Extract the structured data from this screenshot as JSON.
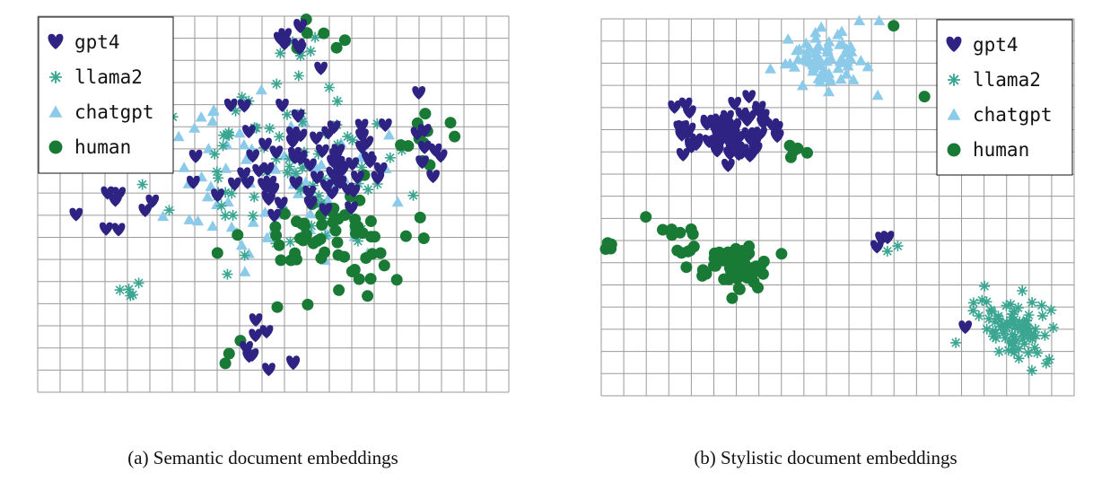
{
  "colors": {
    "gpt4": "#2e2383",
    "llama2": "#3aa691",
    "chatgpt": "#8ccaea",
    "human": "#197a35"
  },
  "chart_data": [
    {
      "type": "scatter",
      "title": "(a) Semantic document embeddings",
      "legend": "top-left",
      "grid": true,
      "xlim": [
        0,
        10
      ],
      "ylim": [
        0,
        10
      ],
      "series": [
        {
          "name": "gpt4",
          "marker": "heart",
          "seed": 11,
          "clusters": [
            {
              "cx": 5.8,
              "cy": 6.2,
              "sx": 1.8,
              "sy": 1.6,
              "n": 70
            },
            {
              "cx": 5.4,
              "cy": 9.3,
              "sx": 0.5,
              "sy": 0.4,
              "n": 7
            },
            {
              "cx": 4.7,
              "cy": 1.2,
              "sx": 0.6,
              "sy": 0.8,
              "n": 9
            },
            {
              "cx": 1.8,
              "cy": 5.0,
              "sx": 0.8,
              "sy": 0.8,
              "n": 8
            },
            {
              "cx": 8.4,
              "cy": 6.3,
              "sx": 0.6,
              "sy": 0.8,
              "n": 6
            }
          ]
        },
        {
          "name": "llama2",
          "marker": "star",
          "seed": 23,
          "clusters": [
            {
              "cx": 5.2,
              "cy": 5.8,
              "sx": 2.0,
              "sy": 1.9,
              "n": 85
            },
            {
              "cx": 5.6,
              "cy": 9.2,
              "sx": 0.4,
              "sy": 0.3,
              "n": 5
            },
            {
              "cx": 2.2,
              "cy": 2.8,
              "sx": 0.5,
              "sy": 0.4,
              "n": 5
            }
          ]
        },
        {
          "name": "chatgpt",
          "marker": "triangle",
          "seed": 37,
          "clusters": [
            {
              "cx": 5.0,
              "cy": 5.5,
              "sx": 2.1,
              "sy": 1.9,
              "n": 70
            }
          ]
        },
        {
          "name": "human",
          "marker": "circle",
          "seed": 53,
          "clusters": [
            {
              "cx": 6.3,
              "cy": 4.1,
              "sx": 1.7,
              "sy": 1.4,
              "n": 65
            },
            {
              "cx": 8.2,
              "cy": 6.8,
              "sx": 0.7,
              "sy": 0.8,
              "n": 12
            },
            {
              "cx": 5.9,
              "cy": 9.5,
              "sx": 0.6,
              "sy": 0.3,
              "n": 6
            },
            {
              "cx": 4.0,
              "cy": 1.2,
              "sx": 0.5,
              "sy": 0.4,
              "n": 3
            }
          ]
        }
      ]
    },
    {
      "type": "scatter",
      "title": "(b) Stylistic document embeddings",
      "legend": "top-right",
      "grid": true,
      "xlim": [
        0,
        10
      ],
      "ylim": [
        0,
        10
      ],
      "series": [
        {
          "name": "gpt4",
          "marker": "heart",
          "seed": 61,
          "clusters": [
            {
              "cx": 2.6,
              "cy": 7.0,
              "sx": 1.1,
              "sy": 0.9,
              "n": 65
            },
            {
              "cx": 5.9,
              "cy": 4.2,
              "sx": 0.2,
              "sy": 0.2,
              "n": 3
            },
            {
              "cx": 7.8,
              "cy": 1.8,
              "sx": 0.1,
              "sy": 0.1,
              "n": 1
            }
          ]
        },
        {
          "name": "llama2",
          "marker": "star",
          "seed": 73,
          "clusters": [
            {
              "cx": 8.8,
              "cy": 1.8,
              "sx": 0.8,
              "sy": 0.8,
              "n": 80
            },
            {
              "cx": 6.2,
              "cy": 3.9,
              "sx": 0.2,
              "sy": 0.2,
              "n": 2
            }
          ]
        },
        {
          "name": "chatgpt",
          "marker": "triangle",
          "seed": 83,
          "clusters": [
            {
              "cx": 4.8,
              "cy": 8.9,
              "sx": 0.8,
              "sy": 0.8,
              "n": 70
            }
          ]
        },
        {
          "name": "human",
          "marker": "circle",
          "seed": 97,
          "clusters": [
            {
              "cx": 2.8,
              "cy": 3.4,
              "sx": 0.6,
              "sy": 0.5,
              "n": 75
            },
            {
              "cx": 1.7,
              "cy": 4.2,
              "sx": 0.8,
              "sy": 0.7,
              "n": 14
            },
            {
              "cx": 0.2,
              "cy": 4.0,
              "sx": 0.15,
              "sy": 0.2,
              "n": 6
            },
            {
              "cx": 4.1,
              "cy": 6.5,
              "sx": 0.7,
              "sy": 0.5,
              "n": 5
            },
            {
              "cx": 6.2,
              "cy": 9.8,
              "sx": 0.1,
              "sy": 0.1,
              "n": 1
            },
            {
              "cx": 6.9,
              "cy": 7.9,
              "sx": 0.1,
              "sy": 0.1,
              "n": 1
            }
          ]
        }
      ]
    }
  ]
}
